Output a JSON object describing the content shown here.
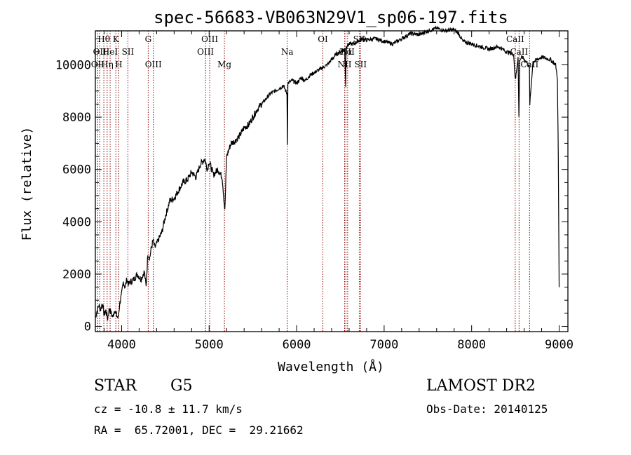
{
  "chart_data": {
    "type": "line",
    "title": "spec-56683-VB063N29V1_sp06-197.fits",
    "xlabel": "Wavelength (Å)",
    "ylabel": "Flux (relative)",
    "xlim": [
      3700,
      9100
    ],
    "ylim": [
      -200,
      11300
    ],
    "xticks": [
      4000,
      5000,
      6000,
      7000,
      8000,
      9000
    ],
    "yticks": [
      0,
      2000,
      4000,
      6000,
      8000,
      10000
    ],
    "series": [
      {
        "x": [
          3700,
          3720,
          3740,
          3760,
          3780,
          3800,
          3820,
          3840,
          3860,
          3880,
          3900,
          3920,
          3940,
          3960,
          3980,
          4000,
          4020,
          4040,
          4060,
          4080,
          4100,
          4140,
          4180,
          4220,
          4260,
          4280,
          4300,
          4320,
          4340,
          4360,
          4380,
          4420,
          4460,
          4500,
          4550,
          4600,
          4650,
          4700,
          4750,
          4800,
          4850,
          4900,
          4950,
          4980,
          5000,
          5050,
          5100,
          5150,
          5180,
          5200,
          5250,
          5300,
          5350,
          5400,
          5450,
          5500,
          5550,
          5600,
          5650,
          5700,
          5750,
          5800,
          5850,
          5890,
          5895,
          5900,
          5950,
          6000,
          6050,
          6100,
          6150,
          6200,
          6250,
          6300,
          6350,
          6400,
          6450,
          6500,
          6550,
          6560,
          6565,
          6600,
          6650,
          6700,
          6750,
          6800,
          6900,
          7000,
          7100,
          7200,
          7300,
          7400,
          7500,
          7600,
          7700,
          7800,
          7850,
          7900,
          8000,
          8100,
          8200,
          8300,
          8400,
          8480,
          8500,
          8530,
          8540,
          8550,
          8580,
          8600,
          8630,
          8660,
          8665,
          8700,
          8800,
          8900,
          8960,
          8980,
          8990,
          9000
        ],
        "y": [
          350,
          600,
          800,
          650,
          900,
          450,
          600,
          300,
          700,
          500,
          350,
          650,
          450,
          300,
          900,
          1200,
          1700,
          1500,
          1800,
          1600,
          1700,
          1800,
          2000,
          1800,
          2100,
          1500,
          2800,
          2600,
          3000,
          3300,
          3000,
          3300,
          3600,
          4200,
          4800,
          4900,
          5200,
          5500,
          5600,
          5900,
          5700,
          6200,
          6400,
          6000,
          6300,
          5800,
          6000,
          5700,
          4400,
          6500,
          7000,
          7100,
          7300,
          7600,
          7700,
          8000,
          8300,
          8500,
          8700,
          8900,
          9000,
          9100,
          9200,
          8900,
          7000,
          9300,
          9400,
          9300,
          9500,
          9400,
          9600,
          9700,
          9800,
          9900,
          10000,
          10200,
          10400,
          10500,
          10600,
          9200,
          10700,
          10800,
          10800,
          10900,
          11000,
          10950,
          11000,
          10900,
          10800,
          11000,
          11200,
          11150,
          11300,
          11400,
          11300,
          11350,
          11200,
          10900,
          10800,
          10700,
          10600,
          10700,
          10500,
          10400,
          9400,
          10300,
          8000,
          10200,
          10300,
          10200,
          10100,
          9900,
          8500,
          10100,
          10300,
          10200,
          10000,
          9500,
          6500,
          1500
        ],
        "color": "#000000"
      }
    ],
    "emission_lines": [
      {
        "x": 3727,
        "label": "OII",
        "row": 2,
        "color": "#8b0000"
      },
      {
        "x": 3750,
        "label": "OII",
        "row": 1,
        "color": "#8b0000"
      },
      {
        "x": 3797,
        "label": "Hθ",
        "row": 0,
        "color": "#8b0000"
      },
      {
        "x": 3835,
        "label": "Hη",
        "row": 2,
        "color": "#8b0000"
      },
      {
        "x": 3869,
        "label": "HeI",
        "row": 1,
        "color": "#8b0000"
      },
      {
        "x": 3934,
        "label": "K",
        "row": 0,
        "color": "#8b0000"
      },
      {
        "x": 3968,
        "label": "H",
        "row": 2,
        "color": "#8b0000"
      },
      {
        "x": 4072,
        "label": "SII",
        "row": 1,
        "color": "#8b0000"
      },
      {
        "x": 4304,
        "label": "G",
        "row": 0,
        "color": "#8b0000"
      },
      {
        "x": 4363,
        "label": "OIII",
        "row": 2,
        "color": "#8b0000"
      },
      {
        "x": 4959,
        "label": "OIII",
        "row": 1,
        "color": "#8b0000"
      },
      {
        "x": 5007,
        "label": "OIII",
        "row": 0,
        "color": "#8b0000"
      },
      {
        "x": 5175,
        "label": "Mg",
        "row": 2,
        "color": "#8b0000"
      },
      {
        "x": 5893,
        "label": "Na",
        "row": 1,
        "color": "#8b0000"
      },
      {
        "x": 6300,
        "label": "OI",
        "row": 0,
        "color": "#8b0000"
      },
      {
        "x": 6548,
        "label": "NII",
        "row": 2,
        "color": "#8b0000"
      },
      {
        "x": 6563,
        "label": "Hα",
        "row": 1,
        "color": "#8b0000"
      },
      {
        "x": 6583,
        "label": "NII",
        "row": 1,
        "color": "#8b0000"
      },
      {
        "x": 6716,
        "label": "SII",
        "row": 0,
        "color": "#8b0000"
      },
      {
        "x": 6731,
        "label": "SII",
        "row": 2,
        "color": "#8b0000"
      },
      {
        "x": 8498,
        "label": "CaII",
        "row": 0,
        "color": "#8b0000"
      },
      {
        "x": 8542,
        "label": "CaII",
        "row": 1,
        "color": "#8b0000"
      },
      {
        "x": 8662,
        "label": "CaII",
        "row": 2,
        "color": "#8b0000"
      }
    ]
  },
  "info": {
    "class_label": "STAR",
    "subclass_label": "G5",
    "survey_label": "LAMOST DR2",
    "cz_text": "cz = -10.8 ± 11.7 km/s",
    "obs_date_text": "Obs-Date: 20140125",
    "radec_text": "RA =  65.72001, DEC =  29.21662"
  }
}
